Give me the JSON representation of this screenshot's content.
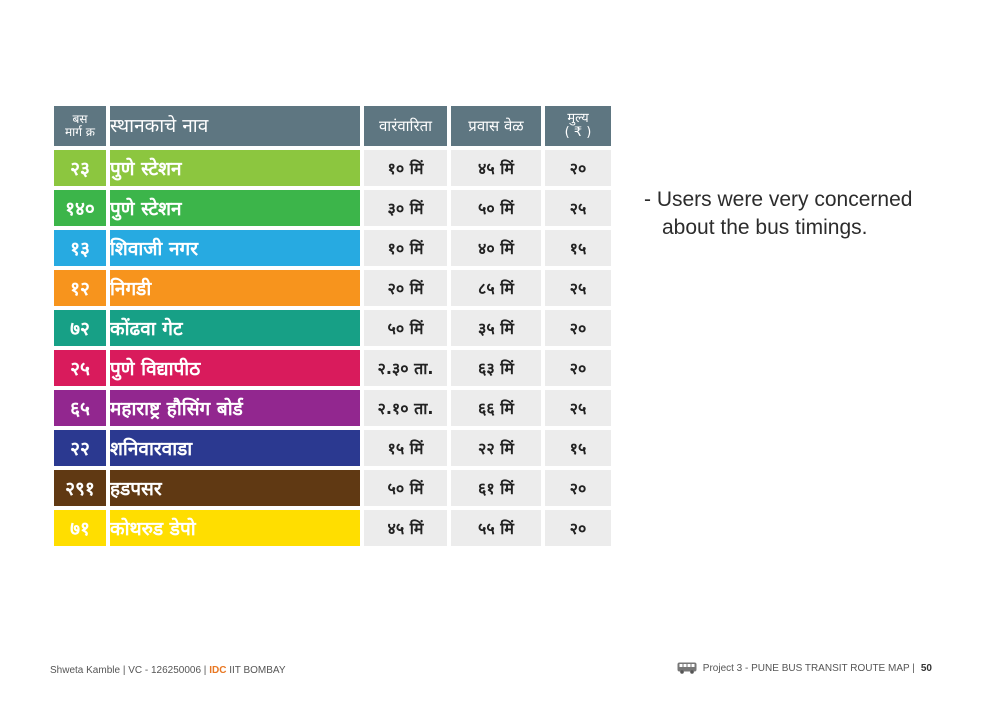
{
  "table": {
    "headers": {
      "route_line1": "बस",
      "route_line2": "मार्ग क्र",
      "name": "स्थानकाचे नाव",
      "frequency": "वारंवारिता",
      "travel_time": "प्रवास वेळ",
      "fare_line1": "मुल्य",
      "fare_line2": "( ₹ )"
    },
    "rows": [
      {
        "route": "२३",
        "name": "पुणे स्टेशन",
        "frequency": "१० मिं",
        "travel_time": "४५ मिं",
        "fare": "२०",
        "color": "#8cc63f"
      },
      {
        "route": "१४०",
        "name": "पुणे स्टेशन",
        "frequency": "३० मिं",
        "travel_time": "५० मिं",
        "fare": "२५",
        "color": "#3cb54a"
      },
      {
        "route": "१३",
        "name": "शिवाजी नगर",
        "frequency": "१० मिं",
        "travel_time": "४० मिं",
        "fare": "१५",
        "color": "#27aae1"
      },
      {
        "route": "१२",
        "name": "निगडी",
        "frequency": "२० मिं",
        "travel_time": "८५ मिं",
        "fare": "२५",
        "color": "#f7941d"
      },
      {
        "route": "७२",
        "name": "कोंढवा गेट",
        "frequency": "५० मिं",
        "travel_time": "३५ मिं",
        "fare": "२०",
        "color": "#17a086"
      },
      {
        "route": "२५",
        "name": "पुणे विद्यापीठ",
        "frequency": "२.३० ता.",
        "travel_time": "६३ मिं",
        "fare": "२०",
        "color": "#d91b5c"
      },
      {
        "route": "६५",
        "name": "महाराष्ट्र हौसिंग बोर्ड",
        "frequency": "२.१० ता.",
        "travel_time": "६६ मिं",
        "fare": "२५",
        "color": "#92278f"
      },
      {
        "route": "२२",
        "name": "शनिवारवाडा",
        "frequency": "१५ मिं",
        "travel_time": "२२ मिं",
        "fare": "१५",
        "color": "#2b3990"
      },
      {
        "route": "२९१",
        "name": "हडपसर",
        "frequency": "५० मिं",
        "travel_time": "६१ मिं",
        "fare": "२०",
        "color": "#603913"
      },
      {
        "route": "७१",
        "name": "कोथरुड डेपो",
        "frequency": "४५ मिं",
        "travel_time": "५५ मिं",
        "fare": "२०",
        "color": "#ffde00"
      }
    ]
  },
  "note": {
    "line1": "- Users were very concerned",
    "line2": "about the bus timings."
  },
  "footer": {
    "author": "Shweta Kamble | VC - 126250006 |",
    "org_highlight": "IDC",
    "org_rest": "IIT BOMBAY",
    "project": "Project 3 - PUNE BUS TRANSIT ROUTE MAP |",
    "page_number": "50",
    "icon": "bus-icon"
  }
}
